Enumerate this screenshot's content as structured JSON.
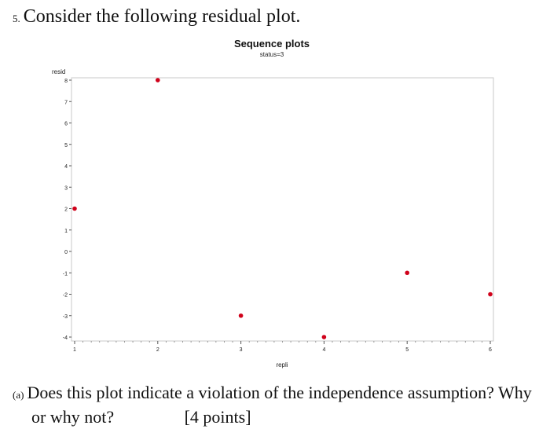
{
  "question": {
    "number": "5.",
    "text": "Consider the following residual plot."
  },
  "chart_data": {
    "type": "scatter",
    "title": "Sequence plots",
    "subtitle": "status=3",
    "xlabel": "repli",
    "ylabel": "resid",
    "xlim": [
      1,
      6
    ],
    "ylim": [
      -4,
      8
    ],
    "x_ticks": [
      1,
      2,
      3,
      4,
      5,
      6
    ],
    "y_ticks": [
      8,
      7,
      6,
      5,
      4,
      3,
      2,
      1,
      0,
      -1,
      -2,
      -3,
      -4
    ],
    "x": [
      1,
      2,
      3,
      4,
      5,
      6
    ],
    "y": [
      2,
      8,
      -3,
      -4,
      -1,
      -2
    ],
    "marker_color": "#d0021b",
    "grid": false
  },
  "part_a": {
    "label": "(a)",
    "line1": "Does this plot indicate a violation of the independence assumption? Why",
    "line2": "or why not?",
    "points": "[4 points]"
  }
}
